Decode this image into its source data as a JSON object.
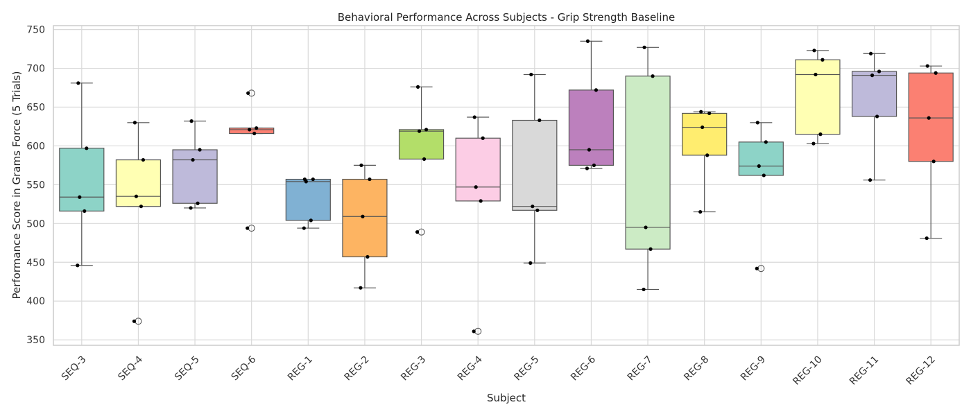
{
  "chart_data": {
    "type": "box",
    "title": "Behavioral Performance Across Subjects - Grip Strength Baseline",
    "xlabel": "Subject",
    "ylabel": "Performance Score in Grams Force (5 Trials)",
    "ylim": [
      343,
      755
    ],
    "yticks": [
      350,
      400,
      450,
      500,
      550,
      600,
      650,
      700,
      750
    ],
    "grid": true,
    "colors": [
      "#8dd3c7",
      "#ffffb3",
      "#bebada",
      "#fb8072",
      "#80b1d3",
      "#fdb462",
      "#b3de69",
      "#fccde5",
      "#d9d9d9",
      "#bc80bd",
      "#ccebc5",
      "#ffed6f"
    ],
    "subjects": [
      {
        "name": "SEQ-3",
        "color": "#8dd3c7",
        "points": [
          446,
          516,
          534,
          597,
          681
        ],
        "q1": 516,
        "median": 534,
        "q3": 597,
        "whisker_low": 446,
        "whisker_high": 681,
        "outliers": []
      },
      {
        "name": "SEQ-4",
        "color": "#ffffb3",
        "points": [
          374,
          522,
          535,
          582,
          630
        ],
        "q1": 522,
        "median": 535,
        "q3": 582,
        "whisker_low": 522,
        "whisker_high": 630,
        "outliers": [
          374
        ]
      },
      {
        "name": "SEQ-5",
        "color": "#bebada",
        "points": [
          520,
          526,
          582,
          595,
          632
        ],
        "q1": 526,
        "median": 582,
        "q3": 595,
        "whisker_low": 520,
        "whisker_high": 632,
        "outliers": []
      },
      {
        "name": "SEQ-6",
        "color": "#fb8072",
        "points": [
          494,
          616,
          621,
          623,
          668
        ],
        "q1": 616,
        "median": 621,
        "q3": 623,
        "whisker_low": 616,
        "whisker_high": 623,
        "outliers": [
          494,
          668
        ]
      },
      {
        "name": "REG-1",
        "color": "#80b1d3",
        "points": [
          494,
          504,
          554,
          557,
          557
        ],
        "q1": 504,
        "median": 554,
        "q3": 557,
        "whisker_low": 494,
        "whisker_high": 557,
        "outliers": []
      },
      {
        "name": "REG-2",
        "color": "#fdb462",
        "points": [
          417,
          457,
          509,
          557,
          575
        ],
        "q1": 457,
        "median": 509,
        "q3": 557,
        "whisker_low": 417,
        "whisker_high": 575,
        "outliers": []
      },
      {
        "name": "REG-3",
        "color": "#b3de69",
        "points": [
          489,
          583,
          619,
          621,
          676
        ],
        "q1": 583,
        "median": 619,
        "q3": 621,
        "whisker_low": 583,
        "whisker_high": 676,
        "outliers": [
          489
        ]
      },
      {
        "name": "REG-4",
        "color": "#fccde5",
        "points": [
          361,
          529,
          547,
          610,
          637
        ],
        "q1": 529,
        "median": 547,
        "q3": 610,
        "whisker_low": 529,
        "whisker_high": 637,
        "outliers": [
          361
        ]
      },
      {
        "name": "REG-5",
        "color": "#d9d9d9",
        "points": [
          449,
          517,
          522,
          633,
          692
        ],
        "q1": 517,
        "median": 522,
        "q3": 633,
        "whisker_low": 449,
        "whisker_high": 692,
        "outliers": []
      },
      {
        "name": "REG-6",
        "color": "#bc80bd",
        "points": [
          571,
          575,
          595,
          672,
          735
        ],
        "q1": 575,
        "median": 595,
        "q3": 672,
        "whisker_low": 571,
        "whisker_high": 735,
        "outliers": []
      },
      {
        "name": "REG-7",
        "color": "#ccebc5",
        "points": [
          415,
          467,
          495,
          690,
          727
        ],
        "q1": 467,
        "median": 495,
        "q3": 690,
        "whisker_low": 415,
        "whisker_high": 727,
        "outliers": []
      },
      {
        "name": "REG-8",
        "color": "#ffed6f",
        "points": [
          515,
          588,
          624,
          642,
          644
        ],
        "q1": 588,
        "median": 624,
        "q3": 642,
        "whisker_low": 515,
        "whisker_high": 644,
        "outliers": []
      },
      {
        "name": "REG-9",
        "color": "#8dd3c7",
        "points": [
          442,
          562,
          574,
          605,
          630
        ],
        "q1": 562,
        "median": 574,
        "q3": 605,
        "whisker_low": 562,
        "whisker_high": 630,
        "outliers": [
          442
        ]
      },
      {
        "name": "REG-10",
        "color": "#ffffb3",
        "points": [
          603,
          615,
          692,
          711,
          723
        ],
        "q1": 615,
        "median": 692,
        "q3": 711,
        "whisker_low": 603,
        "whisker_high": 723,
        "outliers": []
      },
      {
        "name": "REG-11",
        "color": "#bebada",
        "points": [
          556,
          638,
          691,
          696,
          719
        ],
        "q1": 638,
        "median": 691,
        "q3": 696,
        "whisker_low": 556,
        "whisker_high": 719,
        "outliers": []
      },
      {
        "name": "REG-12",
        "color": "#fb8072",
        "points": [
          481,
          580,
          636,
          694,
          703
        ],
        "q1": 580,
        "median": 636,
        "q3": 694,
        "whisker_low": 481,
        "whisker_high": 703,
        "outliers": []
      }
    ]
  }
}
